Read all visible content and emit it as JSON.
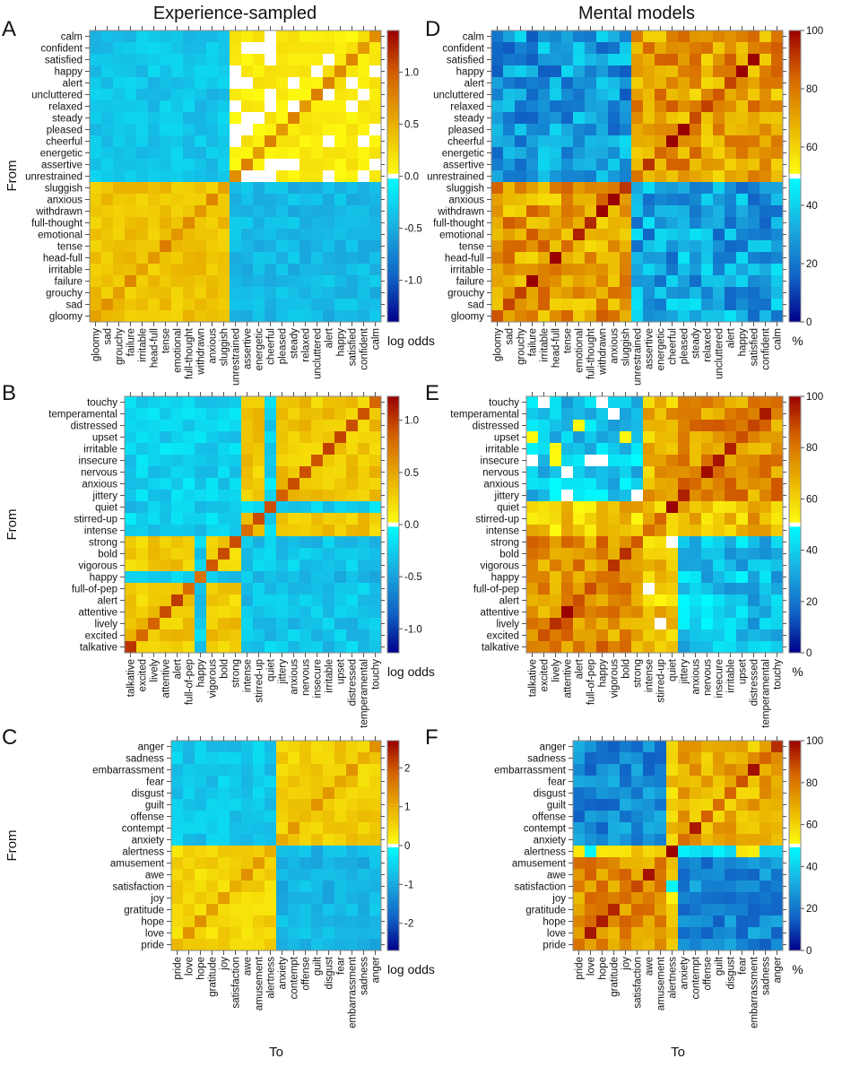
{
  "titles": {
    "left": "Experience-sampled",
    "right": "Mental models"
  },
  "axis_labels": {
    "from": "From",
    "to": "To"
  },
  "chart_data": [
    {
      "panel": "A",
      "type": "heatmap",
      "column": "Experience-sampled",
      "rows": [
        "calm",
        "confident",
        "satisfied",
        "happy",
        "alert",
        "uncluttered",
        "relaxed",
        "steady",
        "pleased",
        "cheerful",
        "energetic",
        "assertive",
        "unrestrained",
        "sluggish",
        "anxious",
        "withdrawn",
        "full-thought",
        "emotional",
        "tense",
        "head-full",
        "irritable",
        "failure",
        "grouchy",
        "sad",
        "gloomy"
      ],
      "cols": [
        "gloomy",
        "sad",
        "grouchy",
        "failure",
        "irritable",
        "head-full",
        "tense",
        "emotional",
        "full-thought",
        "withdrawn",
        "anxious",
        "sluggish",
        "unrestrained",
        "assertive",
        "energetic",
        "cheerful",
        "pleased",
        "steady",
        "relaxed",
        "uncluttered",
        "alert",
        "happy",
        "satisfied",
        "confident",
        "calm"
      ],
      "ylabel": "From",
      "xlabel": "",
      "colorbar": {
        "label": "log odds",
        "range": [
          -1.4,
          1.4
        ],
        "center": 0,
        "ticks": [
          1.0,
          0.5,
          0.0,
          -0.5,
          -1.0
        ],
        "tick_labels": [
          "1.0",
          "0.5",
          "0.0",
          "-0.5",
          "-1.0"
        ]
      },
      "clusters": {
        "pos": [
          "calm",
          "confident",
          "satisfied",
          "happy",
          "alert",
          "uncluttered",
          "relaxed",
          "steady",
          "pleased",
          "cheerful",
          "energetic",
          "assertive",
          "unrestrained"
        ],
        "neg": [
          "sluggish",
          "anxious",
          "withdrawn",
          "full-thought",
          "emotional",
          "tense",
          "head-full",
          "irritable",
          "failure",
          "grouchy",
          "sad",
          "gloomy"
        ]
      },
      "block_means": {
        "pos>pos": 0.1,
        "pos>neg": -0.35,
        "neg>neg": 0.38,
        "neg>pos": -0.42
      },
      "within_block_spread": 0.12,
      "diagonal": 0.7,
      "seed": 3
    },
    {
      "panel": "B",
      "type": "heatmap",
      "column": "Experience-sampled",
      "rows": [
        "touchy",
        "temperamental",
        "distressed",
        "upset",
        "irritable",
        "insecure",
        "nervous",
        "anxious",
        "jittery",
        "quiet",
        "stirred-up",
        "intense",
        "strong",
        "bold",
        "vigorous",
        "happy",
        "full-of-pep",
        "alert",
        "attentive",
        "lively",
        "excited",
        "talkative"
      ],
      "cols": [
        "talkative",
        "excited",
        "lively",
        "attentive",
        "alert",
        "full-of-pep",
        "happy",
        "vigorous",
        "bold",
        "strong",
        "intense",
        "stirred-up",
        "quiet",
        "jittery",
        "anxious",
        "nervous",
        "insecure",
        "irritable",
        "upset",
        "distressed",
        "temperamental",
        "touchy"
      ],
      "ylabel": "From",
      "xlabel": "",
      "colorbar": {
        "label": "log odds",
        "range": [
          -1.23,
          1.23
        ],
        "center": 0,
        "ticks": [
          1.0,
          0.5,
          0.0,
          -0.5,
          -1.0
        ],
        "tick_labels": [
          "1.0",
          "0.5",
          "0.0",
          "-0.5",
          "-1.0"
        ]
      },
      "clusters": {
        "neg": [
          "touchy",
          "temperamental",
          "distressed",
          "upset",
          "irritable",
          "insecure",
          "nervous",
          "anxious",
          "jittery",
          "stirred-up",
          "intense"
        ],
        "quiet": [
          "quiet"
        ],
        "happy": [
          "happy"
        ],
        "pos": [
          "strong",
          "bold",
          "vigorous",
          "full-of-pep",
          "alert",
          "attentive",
          "lively",
          "excited",
          "talkative"
        ]
      },
      "block_means": {
        "neg>neg": 0.32,
        "neg>pos": -0.25,
        "neg>quiet": -0.2,
        "neg>happy": -0.25,
        "pos>pos": 0.3,
        "pos>neg": -0.3,
        "pos>quiet": -0.3,
        "pos>happy": -0.25,
        "quiet>neg": -0.25,
        "quiet>pos": -0.3,
        "quiet>quiet": 0.1,
        "quiet>happy": -0.25,
        "happy>neg": -0.35,
        "happy>pos": -0.3,
        "happy>quiet": -0.25,
        "happy>happy": 0.0
      },
      "within_block_spread": 0.14,
      "diagonal": 0.9,
      "seed": 7
    },
    {
      "panel": "C",
      "type": "heatmap",
      "column": "Experience-sampled",
      "rows": [
        "anger",
        "sadness",
        "embarrassment",
        "fear",
        "disgust",
        "guilt",
        "offense",
        "contempt",
        "anxiety",
        "alertness",
        "amusement",
        "awe",
        "satisfaction",
        "joy",
        "gratitude",
        "hope",
        "love",
        "pride"
      ],
      "cols": [
        "pride",
        "love",
        "hope",
        "gratitude",
        "joy",
        "satisfaction",
        "awe",
        "amusement",
        "alertness",
        "anxiety",
        "contempt",
        "offense",
        "guilt",
        "disgust",
        "fear",
        "embarrassment",
        "sadness",
        "anger"
      ],
      "ylabel": "From",
      "xlabel": "To",
      "colorbar": {
        "label": "log odds",
        "range": [
          -2.7,
          2.7
        ],
        "center": 0,
        "ticks": [
          2,
          1,
          0,
          -1,
          -2
        ],
        "tick_labels": [
          "2",
          "1",
          "0",
          "-1",
          "-2"
        ]
      },
      "clusters": {
        "neg": [
          "anger",
          "sadness",
          "embarrassment",
          "fear",
          "disgust",
          "guilt",
          "offense",
          "contempt",
          "anxiety"
        ],
        "pos": [
          "alertness",
          "amusement",
          "awe",
          "satisfaction",
          "joy",
          "gratitude",
          "hope",
          "love",
          "pride"
        ]
      },
      "block_means": {
        "neg>neg": 0.6,
        "neg>pos": -0.65,
        "pos>pos": 0.5,
        "pos>neg": -0.85
      },
      "within_block_spread": 0.25,
      "diagonal": 1.1,
      "seed": 11
    },
    {
      "panel": "D",
      "type": "heatmap",
      "column": "Mental models",
      "rows": [
        "calm",
        "confident",
        "satisfied",
        "happy",
        "alert",
        "uncluttered",
        "relaxed",
        "steady",
        "pleased",
        "cheerful",
        "energetic",
        "assertive",
        "unrestrained",
        "sluggish",
        "anxious",
        "withdrawn",
        "full-thought",
        "emotional",
        "tense",
        "head-full",
        "irritable",
        "failure",
        "grouchy",
        "sad",
        "gloomy"
      ],
      "cols": [
        "gloomy",
        "sad",
        "grouchy",
        "failure",
        "irritable",
        "head-full",
        "tense",
        "emotional",
        "full-thought",
        "withdrawn",
        "anxious",
        "sluggish",
        "unrestrained",
        "assertive",
        "energetic",
        "cheerful",
        "pleased",
        "steady",
        "relaxed",
        "uncluttered",
        "alert",
        "happy",
        "satisfied",
        "confident",
        "calm"
      ],
      "ylabel": "",
      "xlabel": "",
      "colorbar": {
        "label": "%",
        "range": [
          0,
          100
        ],
        "center": 50,
        "ticks": [
          100,
          80,
          60,
          40,
          20,
          0
        ],
        "tick_labels": [
          "100",
          "80",
          "60",
          "40",
          "20",
          "0"
        ]
      },
      "clusters": {
        "pos": [
          "calm",
          "confident",
          "satisfied",
          "happy",
          "alert",
          "uncluttered",
          "relaxed",
          "steady",
          "pleased",
          "cheerful",
          "energetic",
          "assertive",
          "unrestrained"
        ],
        "neg": [
          "sluggish",
          "anxious",
          "withdrawn",
          "full-thought",
          "emotional",
          "tense",
          "head-full",
          "irritable",
          "failure",
          "grouchy",
          "sad",
          "gloomy"
        ]
      },
      "block_means": {
        "pos>pos": 72,
        "pos>neg": 28,
        "neg>neg": 72,
        "neg>pos": 30
      },
      "within_block_spread": 14,
      "diagonal": 92,
      "seed": 5
    },
    {
      "panel": "E",
      "type": "heatmap",
      "column": "Mental models",
      "rows": [
        "touchy",
        "temperamental",
        "distressed",
        "upset",
        "irritable",
        "insecure",
        "nervous",
        "anxious",
        "jittery",
        "quiet",
        "stirred-up",
        "intense",
        "strong",
        "bold",
        "vigorous",
        "happy",
        "full-of-pep",
        "alert",
        "attentive",
        "lively",
        "excited",
        "talkative"
      ],
      "cols": [
        "talkative",
        "excited",
        "lively",
        "attentive",
        "alert",
        "full-of-pep",
        "happy",
        "vigorous",
        "bold",
        "strong",
        "intense",
        "stirred-up",
        "quiet",
        "jittery",
        "anxious",
        "nervous",
        "insecure",
        "irritable",
        "upset",
        "distressed",
        "temperamental",
        "touchy"
      ],
      "ylabel": "",
      "xlabel": "",
      "colorbar": {
        "label": "%",
        "range": [
          0,
          100
        ],
        "center": 50,
        "ticks": [
          100,
          80,
          60,
          40,
          20,
          0
        ],
        "tick_labels": [
          "100",
          "80",
          "60",
          "40",
          "20",
          "0"
        ]
      },
      "clusters": {
        "neg": [
          "touchy",
          "temperamental",
          "distressed",
          "upset",
          "irritable",
          "insecure",
          "nervous",
          "anxious",
          "jittery"
        ],
        "mid": [
          "quiet",
          "stirred-up",
          "intense"
        ],
        "pos": [
          "strong",
          "bold",
          "vigorous",
          "happy",
          "full-of-pep",
          "alert",
          "attentive",
          "lively",
          "excited",
          "talkative"
        ]
      },
      "block_means": {
        "neg>neg": 75,
        "neg>mid": 68,
        "neg>pos": 40,
        "mid>neg": 66,
        "mid>mid": 65,
        "mid>pos": 63,
        "pos>pos": 75,
        "pos>mid": 62,
        "pos>neg": 37
      },
      "within_block_spread": 12,
      "diagonal": 90,
      "seed": 9
    },
    {
      "panel": "F",
      "type": "heatmap",
      "column": "Mental models",
      "rows": [
        "anger",
        "sadness",
        "embarrassment",
        "fear",
        "disgust",
        "guilt",
        "offense",
        "contempt",
        "anxiety",
        "alertness",
        "amusement",
        "awe",
        "satisfaction",
        "joy",
        "gratitude",
        "hope",
        "love",
        "pride"
      ],
      "cols": [
        "pride",
        "love",
        "hope",
        "gratitude",
        "joy",
        "satisfaction",
        "awe",
        "amusement",
        "alertness",
        "anxiety",
        "contempt",
        "offense",
        "guilt",
        "disgust",
        "fear",
        "embarrassment",
        "sadness",
        "anger"
      ],
      "ylabel": "",
      "xlabel": "To",
      "colorbar": {
        "label": "%",
        "range": [
          0,
          100
        ],
        "center": 50,
        "ticks": [
          100,
          80,
          60,
          40,
          20,
          0
        ],
        "tick_labels": [
          "100",
          "80",
          "60",
          "40",
          "20",
          "0"
        ]
      },
      "clusters": {
        "neg": [
          "anger",
          "sadness",
          "embarrassment",
          "fear",
          "disgust",
          "guilt",
          "offense",
          "contempt",
          "anxiety"
        ],
        "alert": [
          "alertness"
        ],
        "pos": [
          "amusement",
          "awe",
          "satisfaction",
          "joy",
          "gratitude",
          "hope",
          "love",
          "pride"
        ]
      },
      "block_means": {
        "neg>neg": 68,
        "neg>pos": 25,
        "neg>alert": 60,
        "alert>neg": 48,
        "alert>pos": 58,
        "alert>alert": 88,
        "pos>pos": 75,
        "pos>neg": 24,
        "pos>alert": 58
      },
      "within_block_spread": 10,
      "diagonal": 90,
      "seed": 13
    }
  ]
}
